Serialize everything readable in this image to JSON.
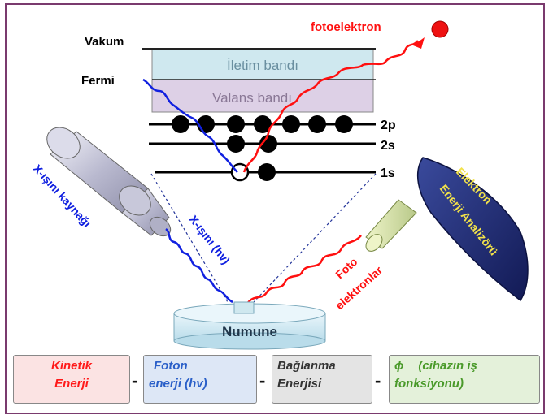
{
  "labels": {
    "vakum": "Vakum",
    "fermi": "Fermi",
    "iletim": "İletim bandı",
    "valans": "Valans bandı",
    "orb_2p": "2p",
    "orb_2s": "2s",
    "orb_1s": "1s",
    "fotoelektron": "fotoelektron",
    "xray_source": "X-ışını kaynağı",
    "xray_beam": "X-ışını (hv)",
    "foto_line1": "Foto",
    "foto_line2": "elektronlar",
    "numune": "Numune",
    "analyzer_line1": "Elektron",
    "analyzer_line2": "Enerji Analizörü"
  },
  "equation": {
    "kinetik_1": "Kinetik",
    "kinetik_2": "Enerji",
    "minus": "-",
    "foton_1": "Foton",
    "foton_2": "enerji (hv)",
    "baglanma_1": "Bağlanma",
    "baglanma_2": "Enerjisi",
    "phi": "ϕ",
    "cihaz_1": "(cihazın iş",
    "cihaz_2": "fonksiyonu)"
  },
  "colors": {
    "frame": "#7a3a6e",
    "photoelectron": "#ff1010",
    "xray": "#1020e0",
    "conduction_band": "#cfe8ef",
    "valence_band": "#ddd0e6",
    "analyzer": "#1e2c78",
    "analyzer_text": "#f2e24a"
  }
}
